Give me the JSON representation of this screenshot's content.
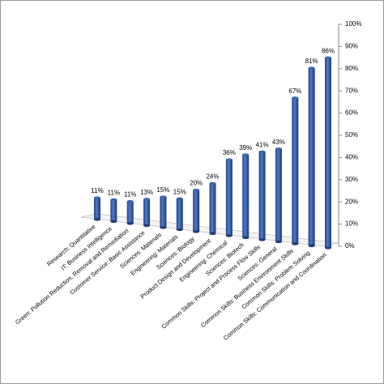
{
  "chart_data": {
    "type": "bar3d",
    "categories": [
      "Research: Quantitative",
      "IT: Business Intelligence",
      "Green: Pollution Reduction, Removal and Remediation",
      "Customer Service: Basic Assistance",
      "Sciences: Materials",
      "Engineering: Materials",
      "Sciences: Biology",
      "Product Design and Development",
      "Engineering: Chemical",
      "Sciences: Biotech",
      "Common Skills: Project and Process Flow Skills",
      "Sciences: General",
      "Common Skills: Business Environment Skills",
      "Common Skills: Problem Solving",
      "Common Skills: Communication and Coordination"
    ],
    "values": [
      11,
      11,
      11,
      13,
      15,
      15,
      20,
      24,
      36,
      39,
      41,
      43,
      67,
      81,
      86
    ],
    "value_labels": [
      "11%",
      "11%",
      "11%",
      "13%",
      "15%",
      "15%",
      "20%",
      "24%",
      "36%",
      "39%",
      "41%",
      "43%",
      "67%",
      "81%",
      "86%"
    ],
    "color": "#3a64b0",
    "ylim": [
      0,
      100
    ],
    "yticks": [
      {
        "value": 0,
        "label": "0%"
      },
      {
        "value": 10,
        "label": "10%"
      },
      {
        "value": 20,
        "label": "20%"
      },
      {
        "value": 30,
        "label": "30%"
      },
      {
        "value": 40,
        "label": "40%"
      },
      {
        "value": 50,
        "label": "50%"
      },
      {
        "value": 60,
        "label": "60%"
      },
      {
        "value": 70,
        "label": "70%"
      },
      {
        "value": 80,
        "label": "80%"
      },
      {
        "value": 90,
        "label": "90%"
      },
      {
        "value": 100,
        "label": "100%"
      }
    ]
  }
}
